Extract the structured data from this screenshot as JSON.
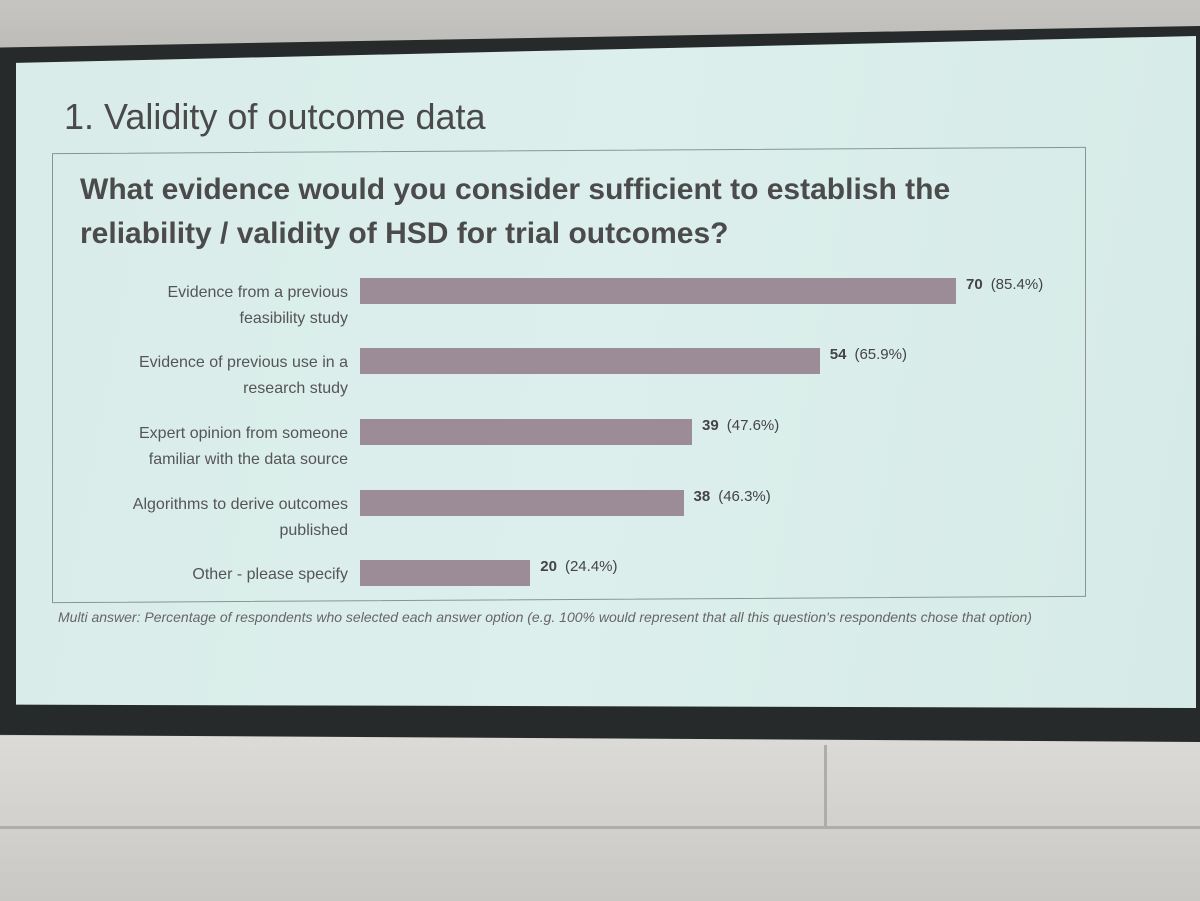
{
  "slide": {
    "title": "1. Validity of outcome data",
    "question": "What evidence would you consider sufficient to establish the reliability / validity of HSD for trial outcomes?",
    "footnote": "Multi answer: Percentage of respondents who selected each answer option (e.g. 100% would represent that all this question's respondents chose that option)"
  },
  "colors": {
    "bar": "#9c8c98",
    "screen": "#dcefec",
    "text": "#4b4b4b"
  },
  "chart_data": {
    "type": "bar",
    "orientation": "horizontal",
    "title": "What evidence would you consider sufficient to establish the reliability / validity of HSD for trial outcomes?",
    "categories": [
      [
        "Evidence from a previous",
        "feasibility study"
      ],
      [
        "Evidence of previous use in a",
        "research study"
      ],
      [
        "Expert opinion from someone",
        "familiar with the data source"
      ],
      [
        "Algorithms to derive outcomes",
        "published"
      ],
      [
        "Other - please specify"
      ]
    ],
    "values": [
      70,
      54,
      39,
      38,
      20
    ],
    "value_labels": [
      "70",
      "54",
      "39",
      "38",
      "20"
    ],
    "percent_labels": [
      "(85.4%)",
      "(65.9%)",
      "(47.6%)",
      "(46.3%)",
      "(24.4%)"
    ],
    "grid": false
  }
}
